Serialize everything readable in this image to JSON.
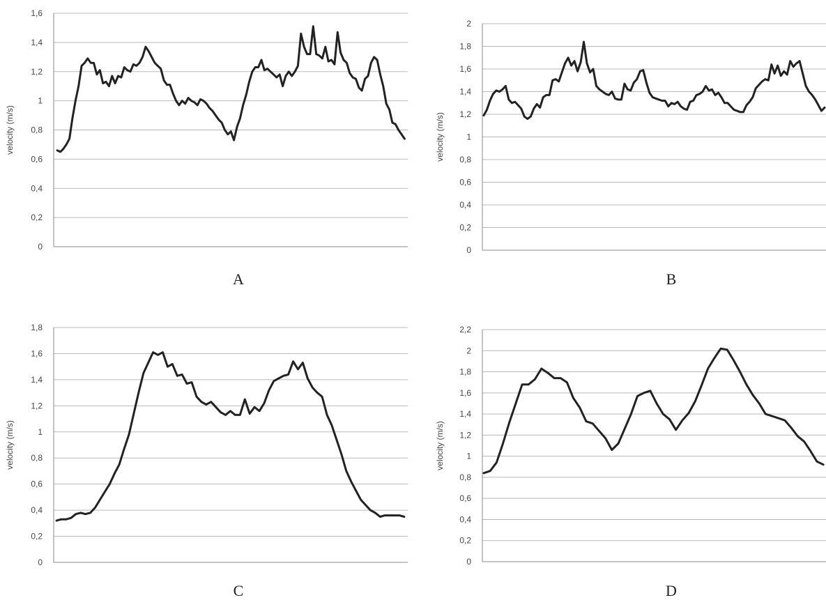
{
  "chart_data": [
    {
      "type": "line",
      "panel_label": "A",
      "ylabel": "velocity (m/s)",
      "ylim": [
        0,
        1.6
      ],
      "yticks": [
        "0",
        "0,2",
        "0,4",
        "0,6",
        "0,8",
        "1",
        "1,2",
        "1,4",
        "1,6"
      ],
      "grid": true,
      "series": [
        {
          "values": [
            0.66,
            0.65,
            0.67,
            0.7,
            0.74,
            0.88,
            1.0,
            1.1,
            1.24,
            1.26,
            1.29,
            1.26,
            1.26,
            1.18,
            1.21,
            1.12,
            1.13,
            1.1,
            1.17,
            1.12,
            1.17,
            1.16,
            1.23,
            1.21,
            1.2,
            1.25,
            1.24,
            1.26,
            1.3,
            1.37,
            1.34,
            1.3,
            1.26,
            1.24,
            1.22,
            1.14,
            1.11,
            1.11,
            1.05,
            1.0,
            0.97,
            1.0,
            0.98,
            1.02,
            1.0,
            0.99,
            0.97,
            1.01,
            1.0,
            0.98,
            0.95,
            0.93,
            0.9,
            0.87,
            0.85,
            0.8,
            0.77,
            0.79,
            0.73,
            0.82,
            0.88,
            0.97,
            1.04,
            1.13,
            1.2,
            1.23,
            1.23,
            1.28,
            1.21,
            1.22,
            1.2,
            1.18,
            1.16,
            1.18,
            1.1,
            1.17,
            1.2,
            1.17,
            1.2,
            1.24,
            1.46,
            1.37,
            1.32,
            1.32,
            1.51,
            1.32,
            1.31,
            1.29,
            1.37,
            1.27,
            1.28,
            1.25,
            1.47,
            1.33,
            1.28,
            1.26,
            1.19,
            1.16,
            1.15,
            1.09,
            1.07,
            1.15,
            1.17,
            1.26,
            1.3,
            1.28,
            1.18,
            1.1,
            0.98,
            0.94,
            0.85,
            0.84,
            0.8,
            0.77,
            0.74
          ]
        }
      ]
    },
    {
      "type": "line",
      "panel_label": "B",
      "ylabel": "velocity (m/s)",
      "ylim": [
        0,
        2
      ],
      "yticks": [
        "0",
        "0,2",
        "0,4",
        "0,6",
        "0,8",
        "1",
        "1,2",
        "1,4",
        "1,6",
        "1,8",
        "2"
      ],
      "grid": true,
      "series": [
        {
          "values": [
            1.19,
            1.24,
            1.32,
            1.38,
            1.41,
            1.4,
            1.42,
            1.45,
            1.33,
            1.3,
            1.31,
            1.28,
            1.25,
            1.18,
            1.16,
            1.18,
            1.25,
            1.29,
            1.26,
            1.35,
            1.37,
            1.37,
            1.5,
            1.51,
            1.49,
            1.57,
            1.65,
            1.7,
            1.63,
            1.67,
            1.58,
            1.66,
            1.84,
            1.65,
            1.57,
            1.6,
            1.45,
            1.42,
            1.4,
            1.38,
            1.37,
            1.4,
            1.34,
            1.33,
            1.33,
            1.47,
            1.42,
            1.41,
            1.48,
            1.51,
            1.58,
            1.59,
            1.48,
            1.39,
            1.35,
            1.34,
            1.33,
            1.32,
            1.32,
            1.27,
            1.3,
            1.29,
            1.31,
            1.27,
            1.25,
            1.24,
            1.31,
            1.32,
            1.37,
            1.38,
            1.4,
            1.45,
            1.41,
            1.42,
            1.37,
            1.39,
            1.35,
            1.3,
            1.3,
            1.27,
            1.24,
            1.23,
            1.22,
            1.22,
            1.28,
            1.31,
            1.35,
            1.43,
            1.46,
            1.49,
            1.51,
            1.5,
            1.64,
            1.56,
            1.63,
            1.54,
            1.58,
            1.55,
            1.67,
            1.62,
            1.65,
            1.67,
            1.56,
            1.45,
            1.4,
            1.37,
            1.33,
            1.28,
            1.23,
            1.26
          ]
        }
      ]
    },
    {
      "type": "line",
      "panel_label": "C",
      "ylabel": "velocity (m/s)",
      "ylim": [
        0,
        1.8
      ],
      "yticks": [
        "0",
        "0,2",
        "0,4",
        "0,6",
        "0,8",
        "1",
        "1,2",
        "1,4",
        "1,6",
        "1,8"
      ],
      "grid": true,
      "series": [
        {
          "values": [
            0.32,
            0.33,
            0.33,
            0.34,
            0.37,
            0.38,
            0.37,
            0.38,
            0.42,
            0.48,
            0.54,
            0.6,
            0.68,
            0.75,
            0.87,
            0.98,
            1.14,
            1.3,
            1.45,
            1.53,
            1.61,
            1.59,
            1.61,
            1.5,
            1.52,
            1.43,
            1.44,
            1.37,
            1.38,
            1.27,
            1.23,
            1.21,
            1.23,
            1.19,
            1.15,
            1.13,
            1.16,
            1.13,
            1.13,
            1.25,
            1.14,
            1.19,
            1.16,
            1.22,
            1.32,
            1.39,
            1.41,
            1.43,
            1.44,
            1.54,
            1.48,
            1.53,
            1.41,
            1.34,
            1.3,
            1.27,
            1.13,
            1.05,
            0.94,
            0.83,
            0.7,
            0.62,
            0.55,
            0.48,
            0.44,
            0.4,
            0.38,
            0.35,
            0.36,
            0.36,
            0.36,
            0.36,
            0.35
          ]
        }
      ]
    },
    {
      "type": "line",
      "panel_label": "D",
      "ylabel": "velocity (m/s)",
      "ylim": [
        0,
        2.2
      ],
      "yticks": [
        "0",
        "0,2",
        "0,4",
        "0,6",
        "0,8",
        "1",
        "1,2",
        "1,4",
        "1,6",
        "1,8",
        "2",
        "2,2"
      ],
      "grid": true,
      "series": [
        {
          "values": [
            0.84,
            0.86,
            0.94,
            1.12,
            1.32,
            1.5,
            1.68,
            1.68,
            1.73,
            1.83,
            1.79,
            1.74,
            1.74,
            1.7,
            1.55,
            1.46,
            1.33,
            1.31,
            1.24,
            1.17,
            1.06,
            1.12,
            1.26,
            1.4,
            1.57,
            1.6,
            1.62,
            1.5,
            1.4,
            1.35,
            1.25,
            1.34,
            1.41,
            1.52,
            1.67,
            1.83,
            1.93,
            2.02,
            2.01,
            1.91,
            1.8,
            1.68,
            1.58,
            1.5,
            1.4,
            1.38,
            1.36,
            1.34,
            1.27,
            1.19,
            1.14,
            1.05,
            0.95,
            0.92
          ]
        }
      ]
    }
  ]
}
